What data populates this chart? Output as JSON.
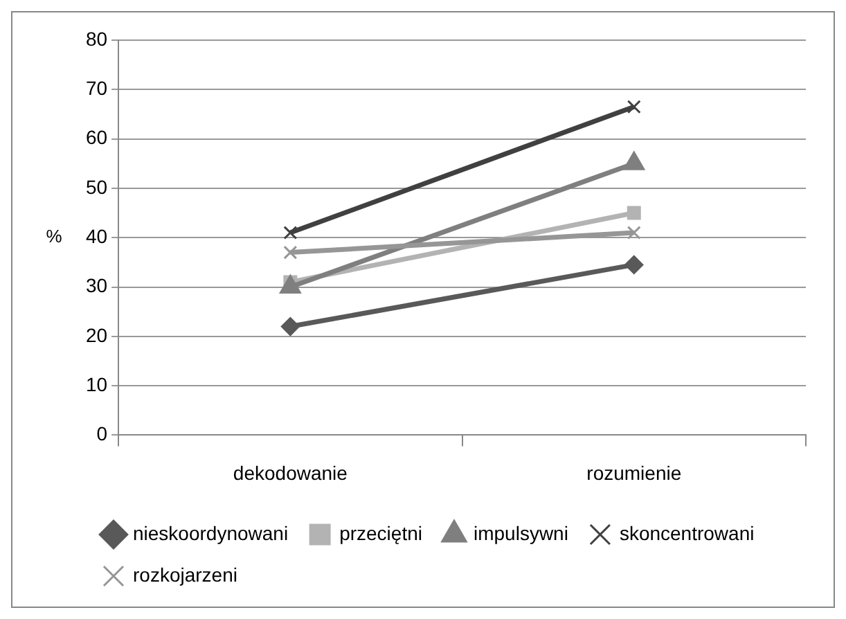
{
  "chart_data": {
    "type": "line",
    "ylabel": "%",
    "categories": [
      "dekodowanie",
      "rozumienie"
    ],
    "series": [
      {
        "name": "nieskoordynowani",
        "color": "#595959",
        "marker": "diamond",
        "values": [
          22,
          34.5
        ]
      },
      {
        "name": "przeciętni",
        "color": "#b3b3b3",
        "marker": "square",
        "values": [
          31,
          45
        ]
      },
      {
        "name": "impulsywni",
        "color": "#7f7f7f",
        "marker": "triangle",
        "values": [
          30,
          55
        ]
      },
      {
        "name": "skoncentrowani",
        "color": "#404040",
        "marker": "cross",
        "values": [
          41,
          66.5
        ]
      },
      {
        "name": "rozkojarzeni",
        "color": "#969696",
        "marker": "cross",
        "values": [
          37,
          41
        ]
      }
    ],
    "ylim": [
      0,
      80
    ],
    "yticks": [
      0,
      10,
      20,
      30,
      40,
      50,
      60,
      70,
      80
    ],
    "grid": "y",
    "legend": "bottom",
    "line_style": "solid"
  }
}
